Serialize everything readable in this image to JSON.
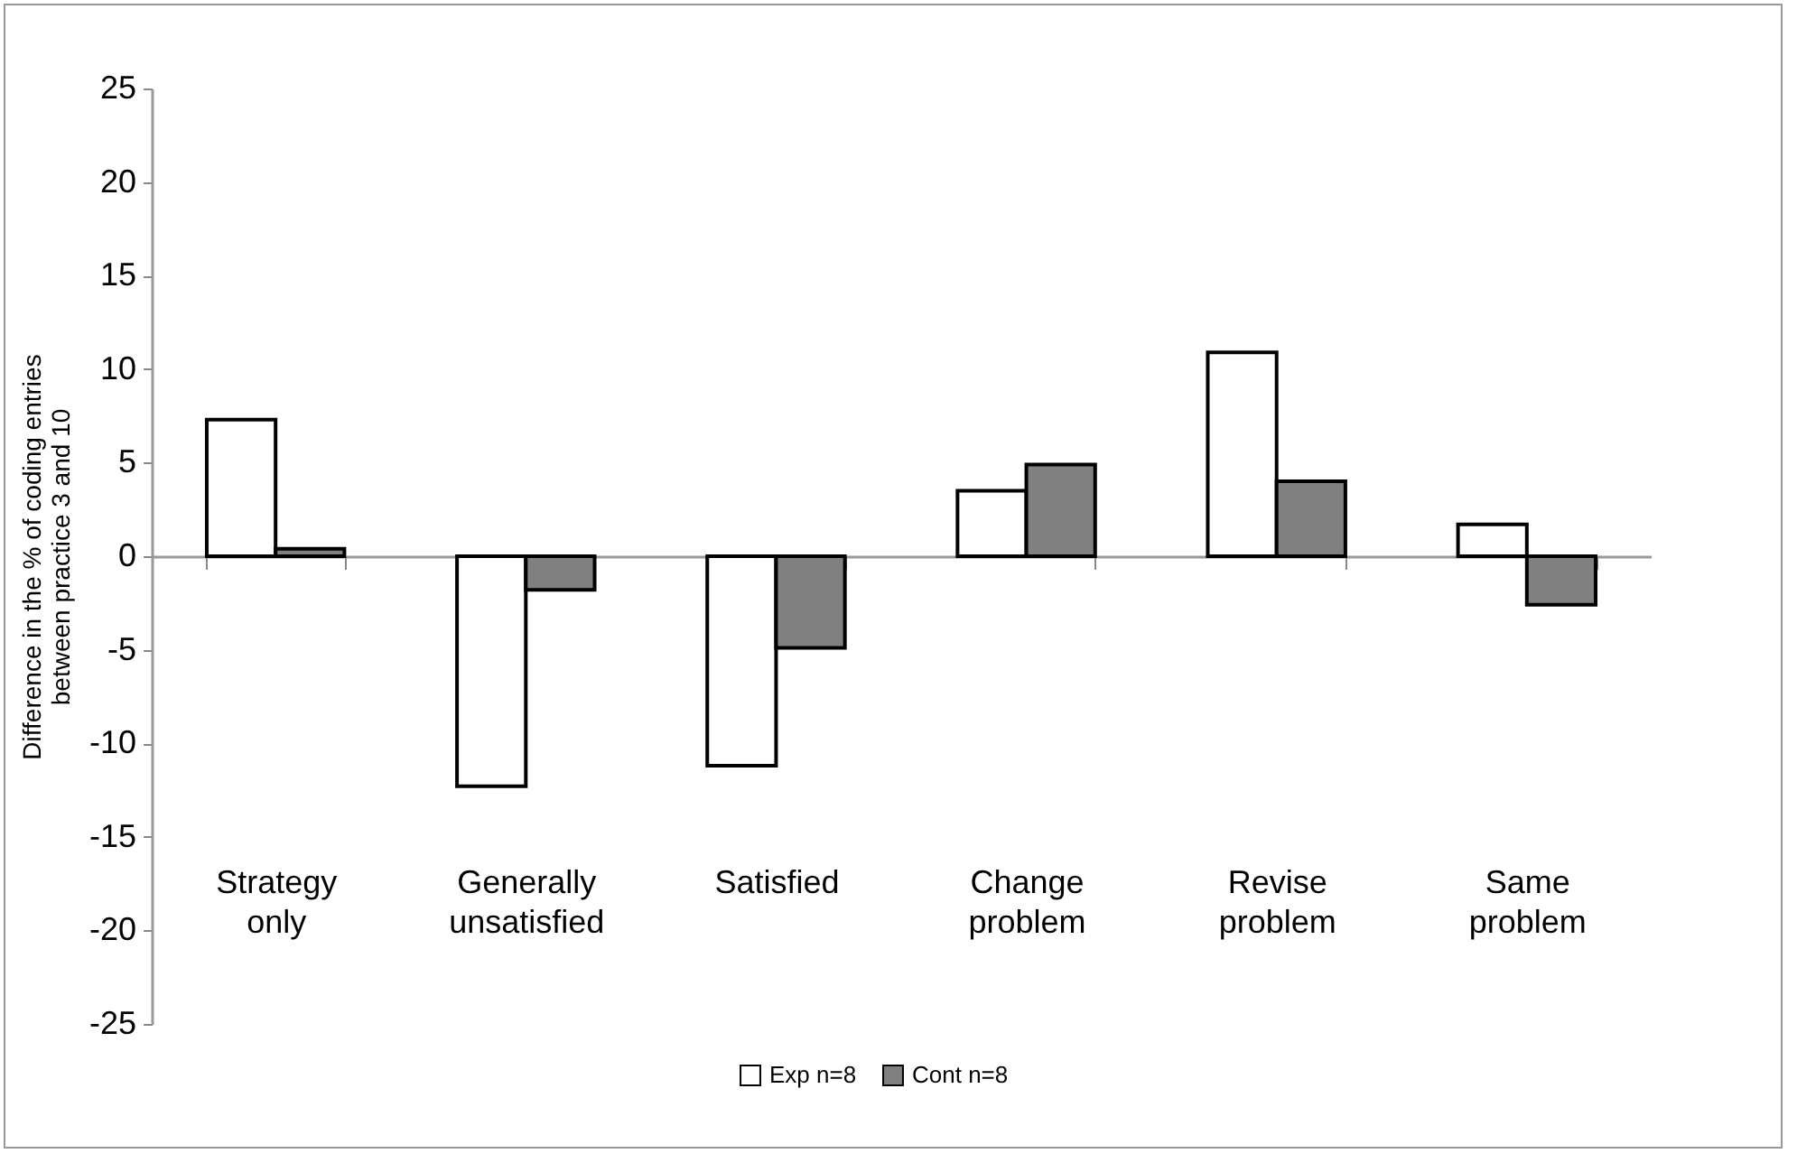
{
  "chart_data": {
    "type": "bar",
    "ylabel": "Difference in the % of coding entries between practice 3 and 10",
    "categories": [
      "Strategy only",
      "Generally unsatisfied",
      "Satisfied",
      "Change problem",
      "Revise problem",
      "Same problem"
    ],
    "series": [
      {
        "name": "Exp n=8",
        "color": "#ffffff",
        "values": [
          7.3,
          -12.3,
          -11.2,
          3.5,
          10.9,
          1.7
        ]
      },
      {
        "name": "Cont n=8",
        "color": "#808080",
        "values": [
          0.4,
          -1.8,
          -4.9,
          4.9,
          4.0,
          -2.6
        ]
      }
    ],
    "ylim": [
      -25,
      25
    ],
    "yticks": [
      -25,
      -20,
      -15,
      -10,
      -5,
      0,
      5,
      10,
      15,
      20,
      25
    ],
    "legend": "bottom"
  }
}
